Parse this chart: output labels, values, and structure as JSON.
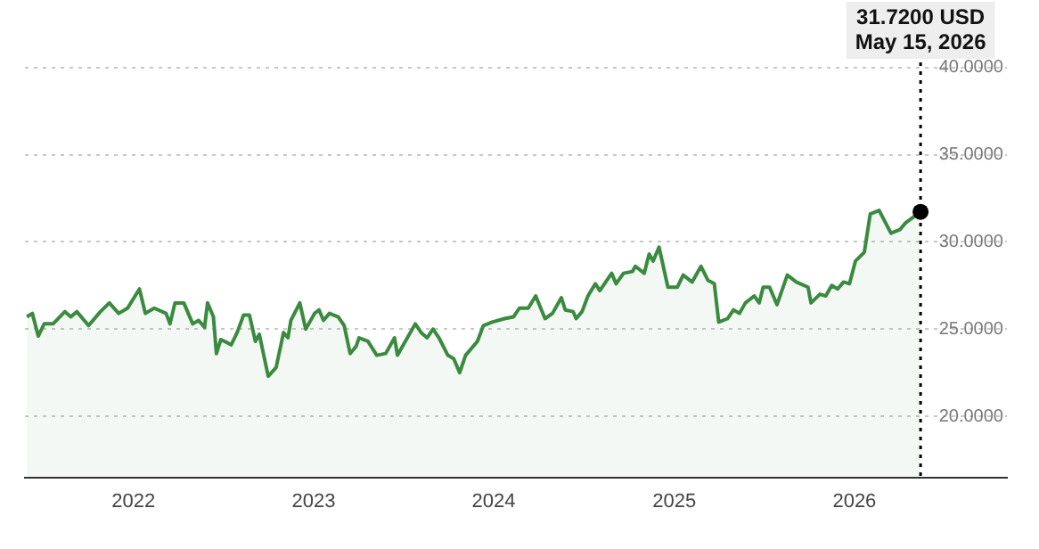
{
  "chart_data": {
    "type": "area",
    "x": [
      "2021-05-30",
      "2021-06-10",
      "2021-06-22",
      "2021-07-04",
      "2021-07-22",
      "2021-08-15",
      "2021-08-27",
      "2021-09-08",
      "2021-10-02",
      "2021-10-26",
      "2021-11-13",
      "2021-12-02",
      "2021-12-20",
      "2022-01-13",
      "2022-01-25",
      "2022-02-12",
      "2022-03-08",
      "2022-03-16",
      "2022-03-26",
      "2022-04-13",
      "2022-05-01",
      "2022-05-13",
      "2022-05-25",
      "2022-05-31",
      "2022-06-12",
      "2022-06-18",
      "2022-06-27",
      "2022-07-18",
      "2022-07-30",
      "2022-08-12",
      "2022-08-24",
      "2022-09-05",
      "2022-09-13",
      "2022-10-01",
      "2022-10-17",
      "2022-11-01",
      "2022-11-10",
      "2022-11-16",
      "2022-12-04",
      "2022-12-16",
      "2023-01-03",
      "2023-01-12",
      "2023-01-21",
      "2023-02-02",
      "2023-02-20",
      "2023-03-04",
      "2023-03-16",
      "2023-03-28",
      "2023-04-03",
      "2023-04-21",
      "2023-05-09",
      "2023-05-27",
      "2023-06-14",
      "2023-06-20",
      "2023-07-02",
      "2023-07-26",
      "2023-08-07",
      "2023-08-19",
      "2023-08-31",
      "2023-09-12",
      "2023-09-30",
      "2023-10-12",
      "2023-10-24",
      "2023-11-05",
      "2023-11-29",
      "2023-12-11",
      "2023-12-29",
      "2024-01-23",
      "2024-02-10",
      "2024-02-22",
      "2024-03-11",
      "2024-03-26",
      "2024-04-14",
      "2024-04-29",
      "2024-05-17",
      "2024-05-25",
      "2024-06-10",
      "2024-06-16",
      "2024-06-28",
      "2024-07-10",
      "2024-07-25",
      "2024-08-03",
      "2024-08-27",
      "2024-09-05",
      "2024-09-20",
      "2024-10-08",
      "2024-10-14",
      "2024-11-01",
      "2024-11-11",
      "2024-11-19",
      "2024-12-01",
      "2024-12-19",
      "2025-01-07",
      "2025-01-19",
      "2025-02-06",
      "2025-02-24",
      "2025-03-10",
      "2025-03-23",
      "2025-04-01",
      "2025-04-19",
      "2025-05-01",
      "2025-05-13",
      "2025-05-25",
      "2025-06-12",
      "2025-06-22",
      "2025-06-30",
      "2025-07-13",
      "2025-07-28",
      "2025-08-18",
      "2025-09-05",
      "2025-09-29",
      "2025-10-05",
      "2025-10-23",
      "2025-11-04",
      "2025-11-16",
      "2025-11-28",
      "2025-12-10",
      "2025-12-22",
      "2026-01-03",
      "2026-01-21",
      "2026-02-02",
      "2026-02-20",
      "2026-03-16",
      "2026-04-03",
      "2026-04-15",
      "2026-05-15"
    ],
    "series": [
      {
        "color": "#3a8a3f",
        "values": [
          25.7,
          25.9,
          24.6,
          25.3,
          25.3,
          26.0,
          25.7,
          26.0,
          25.2,
          26.0,
          26.5,
          25.9,
          26.2,
          27.3,
          25.9,
          26.2,
          25.9,
          25.3,
          26.5,
          26.5,
          25.3,
          25.5,
          25.1,
          26.5,
          25.7,
          23.6,
          24.4,
          24.1,
          24.8,
          25.8,
          25.8,
          24.3,
          24.7,
          22.3,
          22.8,
          24.8,
          24.5,
          25.5,
          26.5,
          25.0,
          25.9,
          26.1,
          25.5,
          25.9,
          25.7,
          25.2,
          23.6,
          24.0,
          24.5,
          24.3,
          23.5,
          23.6,
          24.5,
          23.5,
          24.1,
          25.3,
          24.8,
          24.5,
          25.0,
          24.5,
          23.5,
          23.3,
          22.5,
          23.5,
          24.3,
          25.2,
          25.4,
          25.6,
          25.7,
          26.2,
          26.2,
          26.9,
          25.6,
          25.9,
          26.8,
          26.1,
          26.0,
          25.6,
          26.0,
          26.9,
          27.6,
          27.2,
          28.2,
          27.6,
          28.2,
          28.3,
          28.6,
          28.2,
          29.3,
          28.9,
          29.7,
          27.4,
          27.4,
          28.1,
          27.7,
          28.6,
          27.8,
          27.6,
          25.4,
          25.6,
          26.1,
          25.9,
          26.5,
          26.9,
          26.5,
          27.4,
          27.4,
          26.4,
          28.1,
          27.7,
          27.4,
          26.5,
          27.0,
          26.9,
          27.5,
          27.3,
          27.7,
          27.6,
          28.9,
          29.4,
          31.6,
          31.8,
          30.5,
          30.7,
          31.1,
          31.72
        ]
      }
    ],
    "xlim": [
      "2021-05-26",
      "2026-11-06"
    ],
    "xticks": [
      {
        "value": "2022-01-01",
        "label": "2022"
      },
      {
        "value": "2023-01-01",
        "label": "2023"
      },
      {
        "value": "2024-01-01",
        "label": "2024"
      },
      {
        "value": "2025-01-01",
        "label": "2025"
      },
      {
        "value": "2026-01-01",
        "label": "2026"
      }
    ],
    "ylim": [
      16.5,
      40.8
    ],
    "yticks": [
      {
        "value": 20,
        "label": "20.0000"
      },
      {
        "value": 25,
        "label": "25.0000"
      },
      {
        "value": 30,
        "label": "30.0000"
      },
      {
        "value": 35,
        "label": "35.0000"
      },
      {
        "value": 40,
        "label": "40.0000"
      }
    ],
    "grid": "y",
    "legend": false,
    "marker": "none",
    "line_style": "solid",
    "ref_lines": [
      {
        "axis": "x",
        "value": "2026-05-15",
        "label": "May 15, 2026",
        "color": "#000000",
        "line_style": "dotted"
      }
    ],
    "annotations": [
      "31.7200 USD"
    ]
  }
}
